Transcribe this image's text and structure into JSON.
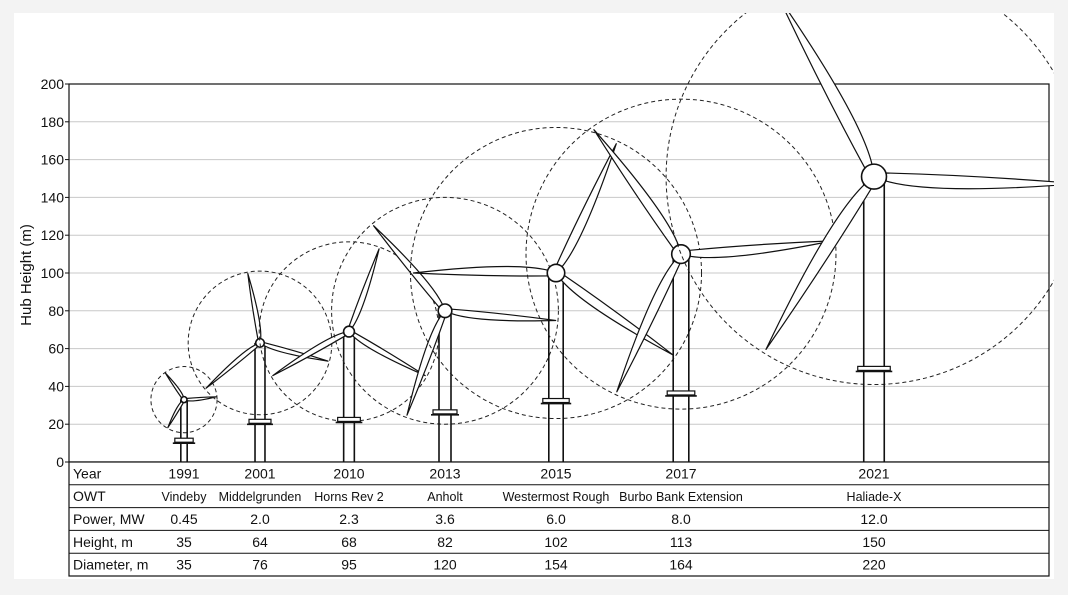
{
  "chart_data": {
    "type": "table",
    "title": "",
    "ylabel": "Hub Height (m)",
    "ylim": [
      0,
      200
    ],
    "yticks": [
      0,
      20,
      40,
      60,
      80,
      100,
      120,
      140,
      160,
      180,
      200
    ],
    "grid": true,
    "rows": {
      "year": "Year",
      "owt": "OWT",
      "power": "Power, MW",
      "height": "Height, m",
      "diameter": "Diameter, m"
    },
    "turbines": [
      {
        "year": "1991",
        "name": "Vindeby",
        "power": "0.45",
        "height": "35",
        "diameter": "35",
        "hub_height": 33,
        "foundation_height": 11
      },
      {
        "year": "2001",
        "name": "Middelgrunden",
        "power": "2.0",
        "height": "64",
        "diameter": "76",
        "hub_height": 63,
        "foundation_height": 21
      },
      {
        "year": "2010",
        "name": "Horns Rev 2",
        "power": "2.3",
        "height": "68",
        "diameter": "95",
        "hub_height": 69,
        "foundation_height": 22
      },
      {
        "year": "2013",
        "name": "Anholt",
        "power": "3.6",
        "height": "82",
        "diameter": "120",
        "hub_height": 80,
        "foundation_height": 26
      },
      {
        "year": "2015",
        "name": "Westermost Rough",
        "power": "6.0",
        "height": "102",
        "diameter": "154",
        "hub_height": 100,
        "foundation_height": 32
      },
      {
        "year": "2017",
        "name": "Burbo Bank Extension",
        "power": "8.0",
        "height": "113",
        "diameter": "164",
        "hub_height": 110,
        "foundation_height": 36
      },
      {
        "year": "2021",
        "name": "Haliade-X",
        "power": "12.0",
        "height": "150",
        "diameter": "220",
        "hub_height": 151,
        "foundation_height": 49
      }
    ]
  }
}
